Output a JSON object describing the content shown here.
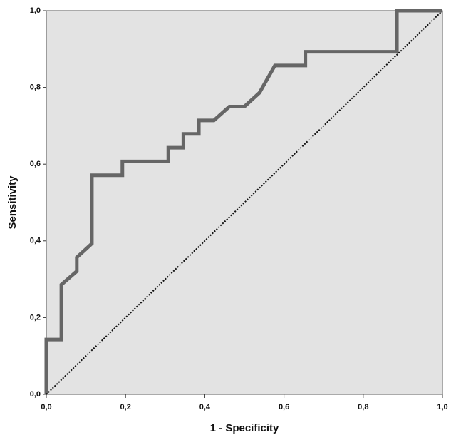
{
  "chart_data": {
    "type": "line",
    "x_label": "1 - Specificity",
    "y_label": "Sensitivity",
    "xlim": [
      0,
      1
    ],
    "ylim": [
      0,
      1
    ],
    "xticks": [
      {
        "value": 0,
        "label": "0,0"
      },
      {
        "value": 0.2,
        "label": "0,2"
      },
      {
        "value": 0.4,
        "label": "0,4"
      },
      {
        "value": 0.6,
        "label": "0,6"
      },
      {
        "value": 0.8,
        "label": "0,8"
      },
      {
        "value": 1,
        "label": "1,0"
      }
    ],
    "yticks": [
      {
        "value": 0,
        "label": "0,0"
      },
      {
        "value": 0.2,
        "label": "0,2"
      },
      {
        "value": 0.4,
        "label": "0,4"
      },
      {
        "value": 0.6,
        "label": "0,6"
      },
      {
        "value": 0.8,
        "label": "0,8"
      },
      {
        "value": 1,
        "label": "1,0"
      }
    ],
    "grid": false,
    "background": "#e3e3e3",
    "series": [
      {
        "color": "#666666",
        "dash": false,
        "x": [
          0,
          0,
          0.038,
          0.038,
          0.077,
          0.077,
          0.115,
          0.115,
          0.192,
          0.192,
          0.308,
          0.308,
          0.346,
          0.346,
          0.385,
          0.385,
          0.423,
          0.462,
          0.5,
          0.538,
          0.577,
          0.654,
          0.654,
          0.885,
          0.885,
          1
        ],
        "values": [
          0,
          0.143,
          0.143,
          0.286,
          0.321,
          0.357,
          0.393,
          0.571,
          0.571,
          0.607,
          0.607,
          0.643,
          0.643,
          0.679,
          0.679,
          0.714,
          0.714,
          0.75,
          0.75,
          0.786,
          0.857,
          0.857,
          0.893,
          0.893,
          1,
          1
        ]
      },
      {
        "color": "#111111",
        "dash": true,
        "x": [
          0,
          1
        ],
        "values": [
          0,
          1
        ]
      }
    ]
  }
}
